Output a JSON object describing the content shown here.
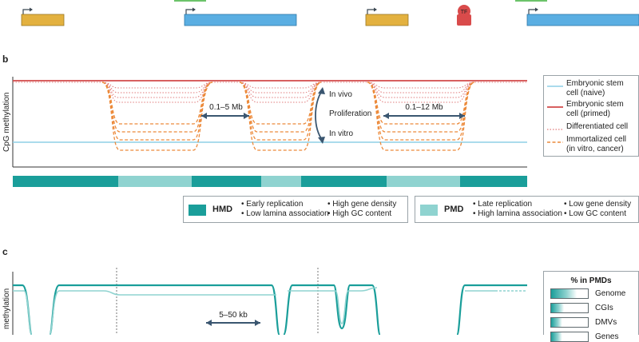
{
  "panel_labels": {
    "b": "b",
    "c": "c"
  },
  "tf_label": "TF",
  "panel_b": {
    "yaxis_label": "CpG methylation",
    "domain_size_1": "0.1–5 Mb",
    "domain_size_2": "0.1–12 Mb",
    "arrow_labels": {
      "in_vivo": "In vivo",
      "proliferation": "Proliferation",
      "in_vitro": "In vitro"
    }
  },
  "legend_b": [
    {
      "label": "Embryonic stem\ncell (naive)",
      "style": "solid",
      "color": "#8ecfe6"
    },
    {
      "label": "Embryonic stem\ncell (primed)",
      "style": "solid",
      "color": "#d24a4a"
    },
    {
      "label": "Differentiated cell",
      "style": "dotted",
      "color": "#e07b7b"
    },
    {
      "label": "Immortalized cell\n(in vitro, cancer)",
      "style": "dashed",
      "color": "#ec8a3b"
    }
  ],
  "hmd": {
    "abbr": "HMD",
    "color": "#1a9e9a",
    "features": [
      "Early replication",
      "Low lamina association",
      "High gene density",
      "High GC content"
    ]
  },
  "pmd": {
    "abbr": "PMD",
    "color": "#8fd3d0",
    "features": [
      "Late replication",
      "High lamina association",
      "Low gene density",
      "Low GC content"
    ]
  },
  "panel_c": {
    "yaxis_label": "methylation",
    "domain_size": "5–50 kb",
    "in_pmds_title": "% in PMDs",
    "in_pmds": [
      {
        "label": "Genome",
        "fraction": 0.7
      },
      {
        "label": "CGIs",
        "fraction": 0.35
      },
      {
        "label": "DMVs",
        "fraction": 0.3
      },
      {
        "label": "Genes",
        "fraction": 0.3
      }
    ]
  }
}
